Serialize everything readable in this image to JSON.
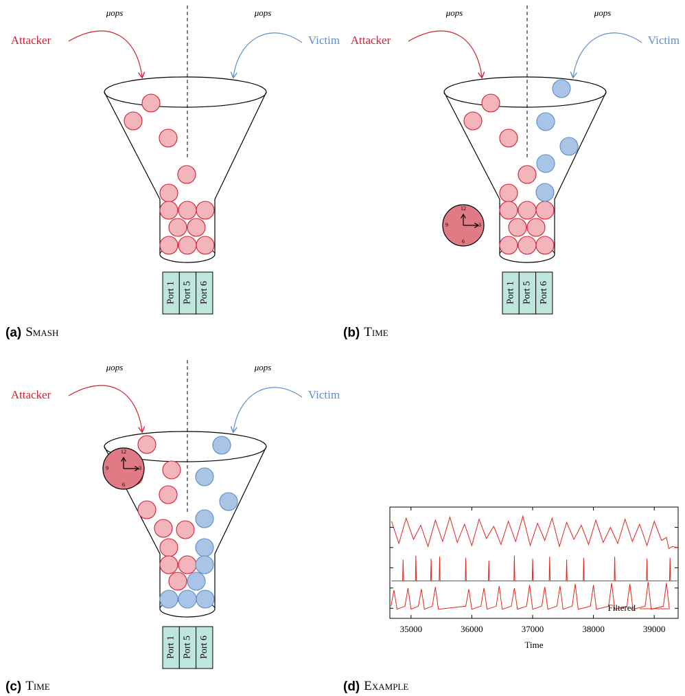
{
  "captions": [
    {
      "letter": "(a)",
      "name": "Smash"
    },
    {
      "letter": "(b)",
      "name": "Time"
    },
    {
      "letter": "(c)",
      "name": "Time"
    },
    {
      "letter": "(d)",
      "name": "Example"
    }
  ],
  "diagrams": [
    {
      "attacker": "Attacker",
      "victim": "Victim",
      "uops": [
        "μops",
        "μops"
      ],
      "ports": [
        "Port 1",
        "Port 5",
        "Port 6"
      ]
    },
    {
      "attacker": "Attacker",
      "victim": "Victim",
      "uops": [
        "μops",
        "μops"
      ],
      "ports": [
        "Port 1",
        "Port 5",
        "Port 6"
      ],
      "clock": [
        "12",
        "3",
        "6",
        "9"
      ]
    },
    {
      "attacker": "Attacker",
      "victim": "Victim",
      "uops": [
        "μops",
        "μops"
      ],
      "ports": [
        "Port 1",
        "Port 5",
        "Port 6"
      ],
      "clock": [
        "12",
        "3",
        "6",
        "9"
      ]
    }
  ],
  "chart_data": {
    "type": "line",
    "x_label": "Time",
    "xlim": [
      34652,
      39393
    ],
    "xticks": [
      35000,
      36000,
      37000,
      38000,
      39000
    ],
    "ylim": [
      0,
      11
    ],
    "yticks": [
      1,
      3,
      5,
      7,
      9
    ],
    "legend": "lower right",
    "series": [
      {
        "color": "#e3241b",
        "x": [
          34680,
          34800,
          34920,
          35040,
          35160,
          35280,
          35400,
          35520,
          35640,
          35760,
          35880,
          36000,
          36120,
          36240,
          36360,
          36480,
          36600,
          36720,
          36840,
          36960,
          37080,
          37200,
          37320,
          37440,
          37560,
          37680,
          37800,
          37920,
          38040,
          38160,
          38280,
          38400,
          38520,
          38640,
          38760,
          38880,
          39000,
          39120,
          39200,
          39240,
          39300,
          39380
        ],
        "values": [
          9.6,
          7.4,
          9.9,
          7.8,
          9.2,
          7.1,
          9.7,
          7.6,
          10.0,
          7.5,
          9.3,
          7.2,
          9.8,
          7.9,
          9.1,
          7.3,
          9.6,
          7.6,
          10.1,
          7.2,
          9.4,
          7.7,
          9.9,
          7.1,
          9.5,
          7.8,
          9.2,
          7.3,
          9.7,
          7.5,
          9.0,
          7.4,
          9.8,
          7.6,
          9.3,
          7.2,
          9.6,
          7.7,
          8.0,
          6.9,
          7.1,
          7.0
        ]
      },
      {
        "color": "#e3241b",
        "x": [
          34680,
          34862,
          34870,
          34878,
          35072,
          35080,
          35088,
          35322,
          35330,
          35338,
          35462,
          35470,
          35478,
          35892,
          35900,
          35908,
          36272,
          36280,
          36288,
          36692,
          36700,
          36708,
          36992,
          37000,
          37008,
          37272,
          37280,
          37288,
          37552,
          37560,
          37568,
          37832,
          37840,
          37848,
          38342,
          38350,
          38358,
          38872,
          38880,
          38888,
          39252,
          39260,
          39268,
          39380
        ],
        "values": [
          3.7,
          3.7,
          5.8,
          3.7,
          3.7,
          6.2,
          3.7,
          3.7,
          5.9,
          3.7,
          3.7,
          6.1,
          3.7,
          3.7,
          6.0,
          3.7,
          3.7,
          5.7,
          3.7,
          3.7,
          6.2,
          3.7,
          3.7,
          5.9,
          3.7,
          3.7,
          6.1,
          3.7,
          3.7,
          5.8,
          3.7,
          3.7,
          6.0,
          3.7,
          3.7,
          6.1,
          3.7,
          3.7,
          5.9,
          3.7,
          3.7,
          6.0,
          3.7,
          3.7
        ]
      },
      {
        "name": "Filtered",
        "color": "#e3241b",
        "x": [
          34670,
          34720,
          34770,
          34900,
          34950,
          35000,
          35120,
          35170,
          35220,
          35350,
          35400,
          35450,
          35900,
          35950,
          36000,
          36150,
          36200,
          36250,
          36400,
          36450,
          36500,
          36650,
          36700,
          36750,
          36900,
          36950,
          37000,
          37150,
          37200,
          37250,
          37400,
          37450,
          37500,
          37650,
          37700,
          37750,
          37950,
          38000,
          38050,
          38250,
          38300,
          38350,
          38550,
          38600,
          38650,
          38850,
          38900,
          38950,
          39150,
          39200,
          39250
        ],
        "values": [
          1.2,
          2.8,
          0.9,
          1.2,
          3.0,
          0.9,
          1.2,
          2.9,
          0.9,
          1.2,
          3.1,
          0.9,
          1.2,
          2.9,
          0.9,
          1.2,
          3.0,
          0.9,
          1.2,
          3.2,
          0.9,
          1.2,
          3.0,
          0.9,
          1.2,
          3.3,
          0.9,
          1.2,
          3.1,
          0.9,
          1.2,
          3.2,
          0.9,
          1.2,
          3.4,
          0.9,
          1.2,
          3.3,
          0.9,
          1.2,
          3.5,
          0.9,
          1.2,
          3.4,
          0.9,
          1.2,
          3.6,
          0.9,
          1.2,
          3.5,
          0.9
        ]
      }
    ]
  }
}
